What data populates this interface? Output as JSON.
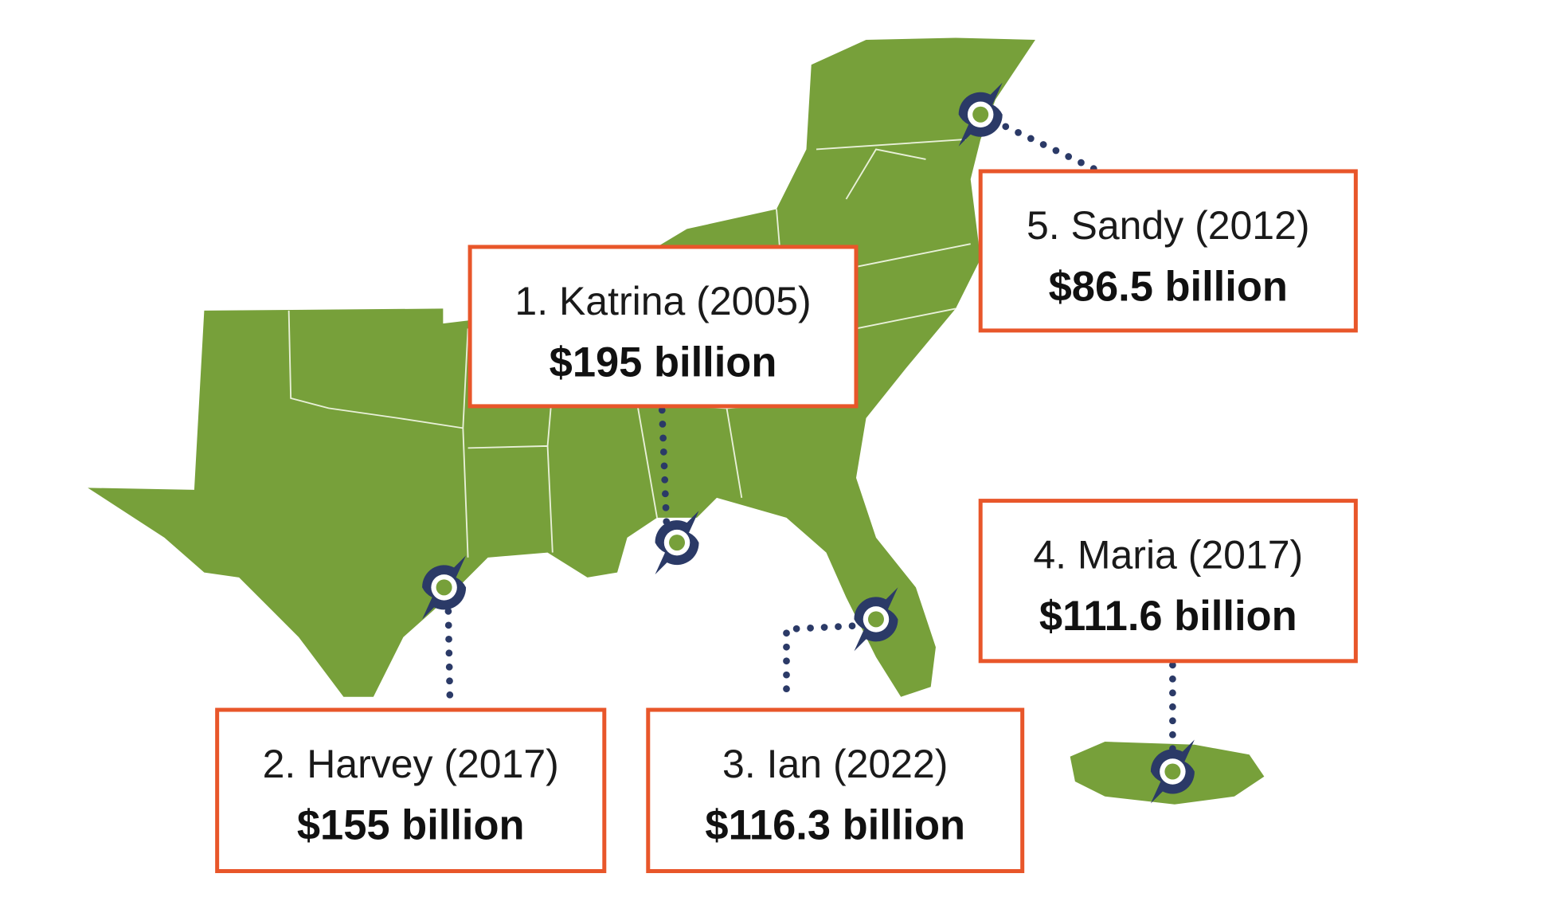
{
  "storms": [
    {
      "name": "1. Katrina (2005)",
      "cost": "$195 billion"
    },
    {
      "name": "2. Harvey (2017)",
      "cost": "$155 billion"
    },
    {
      "name": "3. Ian (2022)",
      "cost": "$116.3 billion"
    },
    {
      "name": "4. Maria (2017)",
      "cost": "$111.6 billion"
    },
    {
      "name": "5. Sandy (2012)",
      "cost": "$86.5 billion"
    }
  ]
}
